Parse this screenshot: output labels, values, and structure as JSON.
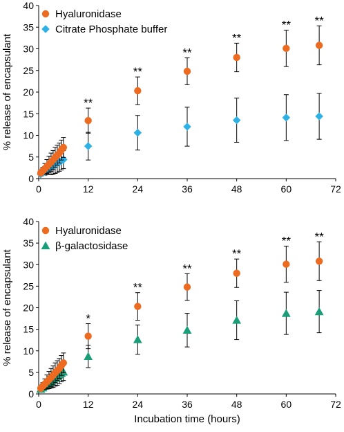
{
  "chart_data": [
    {
      "type": "scatter",
      "xlabel": "",
      "ylabel": "% release of encapsulant",
      "xlim": [
        0,
        72
      ],
      "ylim": [
        0,
        40
      ],
      "xticks": [
        0,
        12,
        24,
        36,
        48,
        60,
        72
      ],
      "yticks": [
        0,
        5,
        10,
        15,
        20,
        25,
        30,
        35,
        40
      ],
      "grid": false,
      "legend": "top-left",
      "series": [
        {
          "name": "Hyaluronidase",
          "marker": "circle",
          "color": "#ED6B21",
          "points": [
            {
              "x": 0.5,
              "y": 1.3,
              "err": 0.4
            },
            {
              "x": 1,
              "y": 1.8,
              "err": 0.8
            },
            {
              "x": 1.5,
              "y": 2.3,
              "err": 1.2
            },
            {
              "x": 2,
              "y": 2.8,
              "err": 1.6
            },
            {
              "x": 2.5,
              "y": 3.3,
              "err": 1.9
            },
            {
              "x": 3,
              "y": 3.8,
              "err": 2.1
            },
            {
              "x": 3.5,
              "y": 4.3,
              "err": 2.2
            },
            {
              "x": 4,
              "y": 4.9,
              "err": 2.3
            },
            {
              "x": 4.5,
              "y": 5.4,
              "err": 2.3
            },
            {
              "x": 5,
              "y": 5.9,
              "err": 2.3
            },
            {
              "x": 5.5,
              "y": 6.6,
              "err": 2.3
            },
            {
              "x": 6,
              "y": 7.2,
              "err": 2.3
            },
            {
              "x": 12,
              "y": 13.4,
              "err": 2.9
            },
            {
              "x": 24,
              "y": 20.3,
              "err": 3.2
            },
            {
              "x": 36,
              "y": 24.8,
              "err": 3.1
            },
            {
              "x": 48,
              "y": 28.0,
              "err": 3.3
            },
            {
              "x": 60,
              "y": 30.1,
              "err": 4.2
            },
            {
              "x": 68,
              "y": 30.8,
              "err": 4.5
            }
          ]
        },
        {
          "name": "Citrate Phosphate buffer",
          "marker": "diamond",
          "color": "#2EB1E5",
          "points": [
            {
              "x": 0.5,
              "y": 1.0,
              "err": 0.3
            },
            {
              "x": 1,
              "y": 1.3,
              "err": 0.5
            },
            {
              "x": 1.5,
              "y": 1.6,
              "err": 0.8
            },
            {
              "x": 2,
              "y": 2.0,
              "err": 1.1
            },
            {
              "x": 2.5,
              "y": 2.3,
              "err": 1.4
            },
            {
              "x": 3,
              "y": 2.6,
              "err": 1.7
            },
            {
              "x": 3.5,
              "y": 2.9,
              "err": 1.9
            },
            {
              "x": 4,
              "y": 3.2,
              "err": 2.0
            },
            {
              "x": 4.5,
              "y": 3.5,
              "err": 2.1
            },
            {
              "x": 5,
              "y": 3.8,
              "err": 2.1
            },
            {
              "x": 5.5,
              "y": 4.1,
              "err": 2.1
            },
            {
              "x": 6,
              "y": 4.4,
              "err": 2.1
            },
            {
              "x": 12,
              "y": 7.5,
              "err": 3.2
            },
            {
              "x": 24,
              "y": 10.6,
              "err": 4.0
            },
            {
              "x": 36,
              "y": 12.0,
              "err": 4.5
            },
            {
              "x": 48,
              "y": 13.5,
              "err": 5.1
            },
            {
              "x": 60,
              "y": 14.1,
              "err": 5.3
            },
            {
              "x": 68,
              "y": 14.4,
              "err": 5.3
            }
          ]
        }
      ],
      "annotations": [
        {
          "x": 12,
          "y": 16.3,
          "text": "**"
        },
        {
          "x": 24,
          "y": 23.5,
          "text": "**"
        },
        {
          "x": 36,
          "y": 27.9,
          "text": "**"
        },
        {
          "x": 48,
          "y": 31.3,
          "text": "**"
        },
        {
          "x": 60,
          "y": 34.3,
          "text": "**"
        },
        {
          "x": 68,
          "y": 35.3,
          "text": "**"
        }
      ]
    },
    {
      "type": "scatter",
      "xlabel": "Incubation time (hours)",
      "ylabel": "% release of encapsulant",
      "xlim": [
        0,
        72
      ],
      "ylim": [
        0,
        40
      ],
      "xticks": [
        0,
        12,
        24,
        36,
        48,
        60,
        72
      ],
      "yticks": [
        0,
        5,
        10,
        15,
        20,
        25,
        30,
        35,
        40
      ],
      "grid": false,
      "legend": "top-left",
      "series": [
        {
          "name": "Hyaluronidase",
          "marker": "circle",
          "color": "#ED6B21",
          "points": [
            {
              "x": 0.5,
              "y": 1.3,
              "err": 0.4
            },
            {
              "x": 1,
              "y": 1.8,
              "err": 0.8
            },
            {
              "x": 1.5,
              "y": 2.3,
              "err": 1.2
            },
            {
              "x": 2,
              "y": 2.8,
              "err": 1.6
            },
            {
              "x": 2.5,
              "y": 3.3,
              "err": 1.9
            },
            {
              "x": 3,
              "y": 3.8,
              "err": 2.1
            },
            {
              "x": 3.5,
              "y": 4.3,
              "err": 2.2
            },
            {
              "x": 4,
              "y": 4.9,
              "err": 2.3
            },
            {
              "x": 4.5,
              "y": 5.4,
              "err": 2.3
            },
            {
              "x": 5,
              "y": 5.9,
              "err": 2.3
            },
            {
              "x": 5.5,
              "y": 6.6,
              "err": 2.3
            },
            {
              "x": 6,
              "y": 7.2,
              "err": 2.3
            },
            {
              "x": 12,
              "y": 13.4,
              "err": 2.9
            },
            {
              "x": 24,
              "y": 20.3,
              "err": 3.2
            },
            {
              "x": 36,
              "y": 24.8,
              "err": 3.1
            },
            {
              "x": 48,
              "y": 28.0,
              "err": 3.3
            },
            {
              "x": 60,
              "y": 30.1,
              "err": 4.2
            },
            {
              "x": 68,
              "y": 30.8,
              "err": 4.5
            }
          ]
        },
        {
          "name": "β-galactosidase",
          "marker": "triangle",
          "color": "#1A9E7A",
          "points": [
            {
              "x": 0.5,
              "y": 1.1,
              "err": 0.3
            },
            {
              "x": 1,
              "y": 1.4,
              "err": 0.5
            },
            {
              "x": 1.5,
              "y": 1.8,
              "err": 0.8
            },
            {
              "x": 2,
              "y": 2.2,
              "err": 1.1
            },
            {
              "x": 2.5,
              "y": 2.6,
              "err": 1.4
            },
            {
              "x": 3,
              "y": 3.0,
              "err": 1.6
            },
            {
              "x": 3.5,
              "y": 3.3,
              "err": 1.8
            },
            {
              "x": 4,
              "y": 3.7,
              "err": 1.9
            },
            {
              "x": 4.5,
              "y": 4.0,
              "err": 2.0
            },
            {
              "x": 5,
              "y": 4.4,
              "err": 2.0
            },
            {
              "x": 5.5,
              "y": 4.8,
              "err": 2.0
            },
            {
              "x": 6,
              "y": 5.1,
              "err": 2.0
            },
            {
              "x": 12,
              "y": 8.7,
              "err": 2.6
            },
            {
              "x": 24,
              "y": 12.6,
              "err": 3.4
            },
            {
              "x": 36,
              "y": 14.8,
              "err": 3.9
            },
            {
              "x": 48,
              "y": 17.1,
              "err": 4.5
            },
            {
              "x": 60,
              "y": 18.7,
              "err": 4.9
            },
            {
              "x": 68,
              "y": 19.1,
              "err": 4.9
            }
          ]
        }
      ],
      "annotations": [
        {
          "x": 12,
          "y": 16.3,
          "text": "*"
        },
        {
          "x": 24,
          "y": 23.5,
          "text": "**"
        },
        {
          "x": 36,
          "y": 27.9,
          "text": "**"
        },
        {
          "x": 48,
          "y": 31.3,
          "text": "**"
        },
        {
          "x": 60,
          "y": 34.3,
          "text": "**"
        },
        {
          "x": 68,
          "y": 35.3,
          "text": "**"
        }
      ]
    }
  ]
}
